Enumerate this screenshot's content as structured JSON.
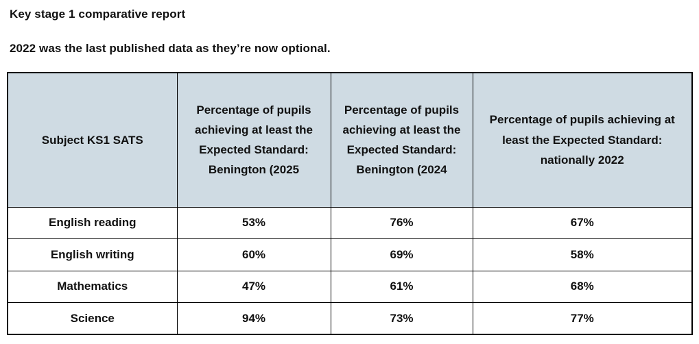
{
  "page": {
    "title": "Key stage 1 comparative report",
    "subtitle": "2022 was the last published data as they’re now optional."
  },
  "table": {
    "header_bg": "#CFDBE3",
    "border_color": "#000000",
    "columns": [
      "Subject KS1 SATS",
      "Percentage of pupils achieving at least the Expected Standard: Benington (2025",
      "Percentage of pupils achieving at least the Expected Standard: Benington (2024",
      "Percentage of pupils achieving at least the Expected Standard: nationally 2022"
    ],
    "rows": [
      {
        "subject": "English reading",
        "values": [
          "53%",
          "76%",
          "67%"
        ]
      },
      {
        "subject": "English writing",
        "values": [
          "60%",
          "69%",
          "58%"
        ]
      },
      {
        "subject": "Mathematics",
        "values": [
          "47%",
          "61%",
          "68%"
        ]
      },
      {
        "subject": "Science",
        "values": [
          "94%",
          "73%",
          "77%"
        ]
      }
    ]
  }
}
